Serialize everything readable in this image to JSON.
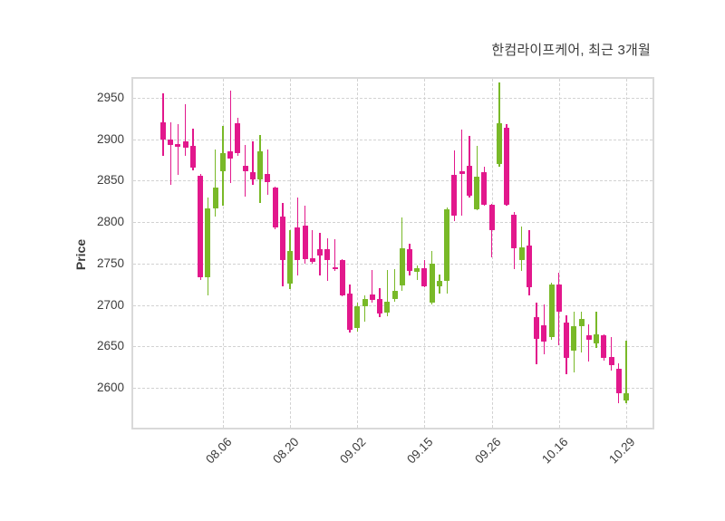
{
  "title": "한컴라이프케어, 최근 3개월",
  "chart_data": {
    "type": "candlestick",
    "title": "한컴라이프케어, 최근 3개월",
    "xlabel": "",
    "ylabel": "Price",
    "grid": true,
    "ylim": [
      2552,
      2973
    ],
    "yticks": [
      2600,
      2650,
      2700,
      2750,
      2800,
      2850,
      2900,
      2950
    ],
    "xtick_indices": [
      8,
      17,
      26,
      35,
      44,
      53,
      62
    ],
    "xtick_labels": [
      "08.06",
      "08.20",
      "09.02",
      "09.15",
      "09.26",
      "10.16",
      "10.29"
    ],
    "colors": {
      "up": "#79b928",
      "down": "#e2188c"
    },
    "open": [
      2920,
      2900,
      2894,
      2898,
      2892,
      2856,
      2734,
      2817,
      2862,
      2886,
      2919,
      2868,
      2860,
      2852,
      2858,
      2842,
      2807,
      2726,
      2794,
      2796,
      2756,
      2767,
      2767,
      2746,
      2754,
      2714,
      2672,
      2698,
      2713,
      2707,
      2691,
      2707,
      2724,
      2767,
      2740,
      2745,
      2703,
      2723,
      2729,
      2857,
      2862,
      2868,
      2815,
      2860,
      2821,
      2870,
      2914,
      2809,
      2754,
      2772,
      2685,
      2676,
      2661,
      2725,
      2679,
      2645,
      2674,
      2663,
      2654,
      2663,
      2637,
      2623,
      2585
    ],
    "high": [
      2955,
      2920,
      2918,
      2942,
      2913,
      2858,
      2830,
      2888,
      2916,
      2959,
      2926,
      2893,
      2898,
      2905,
      2888,
      2843,
      2823,
      2790,
      2830,
      2820,
      2790,
      2787,
      2781,
      2779,
      2755,
      2725,
      2703,
      2712,
      2742,
      2720,
      2742,
      2743,
      2806,
      2774,
      2748,
      2754,
      2765,
      2737,
      2818,
      2887,
      2912,
      2904,
      2892,
      2867,
      2822,
      2969,
      2918,
      2812,
      2795,
      2790,
      2703,
      2701,
      2727,
      2739,
      2688,
      2692,
      2692,
      2677,
      2692,
      2665,
      2661,
      2630,
      2657
    ],
    "low": [
      2880,
      2845,
      2857,
      2880,
      2862,
      2730,
      2712,
      2807,
      2820,
      2847,
      2880,
      2831,
      2845,
      2823,
      2833,
      2792,
      2723,
      2719,
      2736,
      2750,
      2750,
      2736,
      2729,
      2741,
      2711,
      2667,
      2668,
      2680,
      2703,
      2685,
      2687,
      2704,
      2717,
      2736,
      2730,
      2721,
      2701,
      2714,
      2714,
      2801,
      2808,
      2830,
      2814,
      2820,
      2758,
      2867,
      2820,
      2743,
      2741,
      2712,
      2628,
      2641,
      2658,
      2652,
      2617,
      2619,
      2643,
      2632,
      2648,
      2633,
      2621,
      2581,
      2581
    ],
    "close": [
      2900,
      2893,
      2891,
      2890,
      2866,
      2733,
      2817,
      2842,
      2883,
      2877,
      2883,
      2862,
      2852,
      2885,
      2848,
      2794,
      2754,
      2765,
      2754,
      2755,
      2752,
      2760,
      2754,
      2745,
      2712,
      2670,
      2698,
      2707,
      2706,
      2690,
      2704,
      2717,
      2769,
      2741,
      2745,
      2723,
      2750,
      2729,
      2816,
      2808,
      2858,
      2832,
      2855,
      2821,
      2790,
      2919,
      2821,
      2769,
      2770,
      2721,
      2659,
      2656,
      2725,
      2692,
      2636,
      2674,
      2683,
      2658,
      2665,
      2636,
      2627,
      2594,
      2594
    ]
  }
}
